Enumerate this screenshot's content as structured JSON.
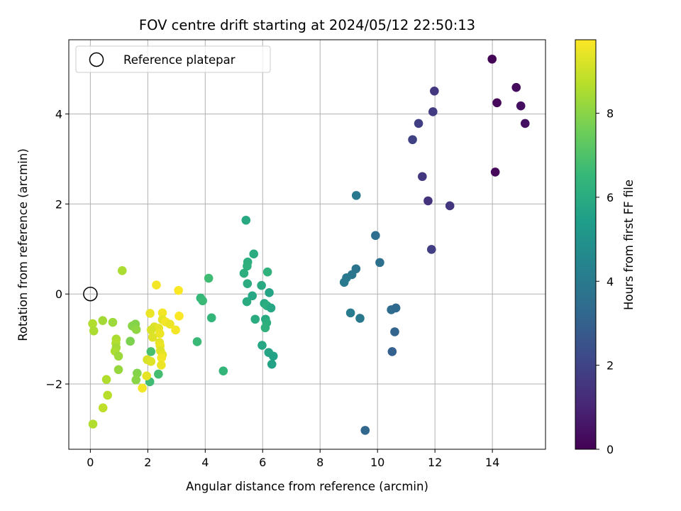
{
  "chart_data": {
    "type": "scatter",
    "title": "FOV centre drift starting at 2024/05/12 22:50:13",
    "xlabel": "Angular distance from reference (arcmin)",
    "ylabel": "Rotation from reference (arcmin)",
    "xlim": [
      -0.75,
      15.85
    ],
    "ylim": [
      -3.45,
      5.65
    ],
    "xticks": [
      0,
      2,
      4,
      6,
      8,
      10,
      12,
      14
    ],
    "yticks": [
      -2,
      0,
      2,
      4
    ],
    "grid": true,
    "colormap": "viridis",
    "colorbar": {
      "label": "Hours from first FF file",
      "range": [
        0,
        9.75
      ],
      "ticks": [
        0,
        2,
        4,
        6,
        8
      ]
    },
    "legend": {
      "position": "upper-left",
      "entries": [
        {
          "label": "Reference platepar",
          "marker": "open-circle",
          "color": "#000000"
        }
      ]
    },
    "reference_point": {
      "x": 0,
      "y": 0
    },
    "points": [
      {
        "x": 13.99,
        "y": 5.22,
        "c": 0.1
      },
      {
        "x": 14.83,
        "y": 4.59,
        "c": 0.3
      },
      {
        "x": 14.16,
        "y": 4.25,
        "c": 0.2
      },
      {
        "x": 14.99,
        "y": 4.18,
        "c": 0.4
      },
      {
        "x": 15.14,
        "y": 3.79,
        "c": 0.4
      },
      {
        "x": 14.1,
        "y": 2.71,
        "c": 0.2
      },
      {
        "x": 11.98,
        "y": 4.51,
        "c": 1.6
      },
      {
        "x": 11.93,
        "y": 4.05,
        "c": 1.7
      },
      {
        "x": 11.43,
        "y": 3.79,
        "c": 1.8
      },
      {
        "x": 11.22,
        "y": 3.43,
        "c": 1.9
      },
      {
        "x": 11.56,
        "y": 2.61,
        "c": 1.6
      },
      {
        "x": 11.76,
        "y": 2.07,
        "c": 1.4
      },
      {
        "x": 12.52,
        "y": 1.96,
        "c": 1.5
      },
      {
        "x": 11.88,
        "y": 0.99,
        "c": 1.8
      },
      {
        "x": 9.26,
        "y": 2.19,
        "c": 4.0
      },
      {
        "x": 9.93,
        "y": 1.3,
        "c": 3.5
      },
      {
        "x": 10.08,
        "y": 0.7,
        "c": 3.6
      },
      {
        "x": 9.25,
        "y": 0.56,
        "c": 3.7
      },
      {
        "x": 9.11,
        "y": 0.43,
        "c": 3.8
      },
      {
        "x": 8.92,
        "y": 0.36,
        "c": 3.9
      },
      {
        "x": 8.84,
        "y": 0.26,
        "c": 4.0
      },
      {
        "x": 9.06,
        "y": -0.42,
        "c": 4.1
      },
      {
        "x": 9.39,
        "y": -0.54,
        "c": 3.9
      },
      {
        "x": 10.48,
        "y": -0.35,
        "c": 3.4
      },
      {
        "x": 10.64,
        "y": -0.31,
        "c": 3.3
      },
      {
        "x": 10.6,
        "y": -0.84,
        "c": 3.1
      },
      {
        "x": 10.51,
        "y": -1.28,
        "c": 3.0
      },
      {
        "x": 9.57,
        "y": -3.03,
        "c": 3.2
      },
      {
        "x": 5.42,
        "y": 1.64,
        "c": 5.9
      },
      {
        "x": 5.69,
        "y": 0.89,
        "c": 6.0
      },
      {
        "x": 5.48,
        "y": 0.71,
        "c": 6.1
      },
      {
        "x": 5.46,
        "y": 0.62,
        "c": 6.2
      },
      {
        "x": 5.35,
        "y": 0.46,
        "c": 6.1
      },
      {
        "x": 6.17,
        "y": 0.49,
        "c": 6.3
      },
      {
        "x": 5.47,
        "y": 0.23,
        "c": 6.0
      },
      {
        "x": 5.96,
        "y": 0.19,
        "c": 5.9
      },
      {
        "x": 5.64,
        "y": -0.04,
        "c": 5.8
      },
      {
        "x": 6.23,
        "y": 0.03,
        "c": 5.7
      },
      {
        "x": 5.45,
        "y": -0.17,
        "c": 6.0
      },
      {
        "x": 6.06,
        "y": -0.21,
        "c": 5.9
      },
      {
        "x": 6.15,
        "y": -0.26,
        "c": 6.1
      },
      {
        "x": 6.29,
        "y": -0.31,
        "c": 5.8
      },
      {
        "x": 5.74,
        "y": -0.56,
        "c": 6.0
      },
      {
        "x": 6.1,
        "y": -0.56,
        "c": 5.9
      },
      {
        "x": 6.14,
        "y": -0.64,
        "c": 6.1
      },
      {
        "x": 6.09,
        "y": -0.75,
        "c": 6.2
      },
      {
        "x": 5.98,
        "y": -1.14,
        "c": 5.8
      },
      {
        "x": 6.21,
        "y": -1.3,
        "c": 5.7
      },
      {
        "x": 6.37,
        "y": -1.38,
        "c": 5.6
      },
      {
        "x": 6.32,
        "y": -1.56,
        "c": 5.6
      },
      {
        "x": 4.12,
        "y": 0.35,
        "c": 6.7
      },
      {
        "x": 3.84,
        "y": -0.09,
        "c": 6.5
      },
      {
        "x": 3.91,
        "y": -0.15,
        "c": 6.6
      },
      {
        "x": 4.22,
        "y": -0.53,
        "c": 6.4
      },
      {
        "x": 3.72,
        "y": -1.06,
        "c": 6.6
      },
      {
        "x": 4.63,
        "y": -1.71,
        "c": 6.4
      },
      {
        "x": 2.11,
        "y": -1.28,
        "c": 6.9
      },
      {
        "x": 2.37,
        "y": -1.78,
        "c": 6.8
      },
      {
        "x": 2.07,
        "y": -1.95,
        "c": 6.7
      },
      {
        "x": 1.11,
        "y": 0.52,
        "c": 8.5
      },
      {
        "x": 0.08,
        "y": -0.66,
        "c": 8.6
      },
      {
        "x": 0.12,
        "y": -0.82,
        "c": 8.5
      },
      {
        "x": 0.43,
        "y": -0.59,
        "c": 8.4
      },
      {
        "x": 0.78,
        "y": -0.63,
        "c": 8.3
      },
      {
        "x": 0.9,
        "y": -1.0,
        "c": 8.5
      },
      {
        "x": 0.89,
        "y": -1.09,
        "c": 8.6
      },
      {
        "x": 0.9,
        "y": -1.19,
        "c": 8.4
      },
      {
        "x": 0.86,
        "y": -1.27,
        "c": 8.5
      },
      {
        "x": 0.98,
        "y": -1.38,
        "c": 8.3
      },
      {
        "x": 0.98,
        "y": -1.68,
        "c": 8.2
      },
      {
        "x": 0.56,
        "y": -1.9,
        "c": 8.6
      },
      {
        "x": 0.6,
        "y": -2.25,
        "c": 8.7
      },
      {
        "x": 0.44,
        "y": -2.53,
        "c": 8.8
      },
      {
        "x": 0.09,
        "y": -2.89,
        "c": 8.6
      },
      {
        "x": 1.46,
        "y": -0.71,
        "c": 8.0
      },
      {
        "x": 1.57,
        "y": -0.67,
        "c": 7.9
      },
      {
        "x": 1.6,
        "y": -0.79,
        "c": 8.1
      },
      {
        "x": 1.39,
        "y": -1.05,
        "c": 7.8
      },
      {
        "x": 1.63,
        "y": -1.76,
        "c": 7.9
      },
      {
        "x": 1.59,
        "y": -1.91,
        "c": 8.0
      },
      {
        "x": 2.3,
        "y": 0.2,
        "c": 9.6
      },
      {
        "x": 3.07,
        "y": 0.08,
        "c": 9.7
      },
      {
        "x": 2.08,
        "y": -0.43,
        "c": 9.5
      },
      {
        "x": 2.51,
        "y": -0.42,
        "c": 9.6
      },
      {
        "x": 3.09,
        "y": -0.49,
        "c": 9.7
      },
      {
        "x": 2.51,
        "y": -0.57,
        "c": 9.4
      },
      {
        "x": 2.62,
        "y": -0.62,
        "c": 9.6
      },
      {
        "x": 2.77,
        "y": -0.67,
        "c": 9.5
      },
      {
        "x": 2.23,
        "y": -0.73,
        "c": 9.3
      },
      {
        "x": 2.38,
        "y": -0.76,
        "c": 9.4
      },
      {
        "x": 2.12,
        "y": -0.8,
        "c": 9.2
      },
      {
        "x": 2.97,
        "y": -0.8,
        "c": 9.6
      },
      {
        "x": 2.42,
        "y": -0.88,
        "c": 9.5
      },
      {
        "x": 2.17,
        "y": -0.96,
        "c": 9.3
      },
      {
        "x": 2.41,
        "y": -1.08,
        "c": 9.4
      },
      {
        "x": 2.43,
        "y": -1.15,
        "c": 9.5
      },
      {
        "x": 2.44,
        "y": -1.26,
        "c": 9.3
      },
      {
        "x": 2.51,
        "y": -1.35,
        "c": 9.4
      },
      {
        "x": 2.48,
        "y": -1.42,
        "c": 9.6
      },
      {
        "x": 1.98,
        "y": -1.46,
        "c": 9.2
      },
      {
        "x": 2.11,
        "y": -1.5,
        "c": 9.3
      },
      {
        "x": 2.47,
        "y": -1.58,
        "c": 9.5
      },
      {
        "x": 1.96,
        "y": -1.82,
        "c": 9.4
      },
      {
        "x": 1.81,
        "y": -2.09,
        "c": 9.6
      }
    ]
  }
}
